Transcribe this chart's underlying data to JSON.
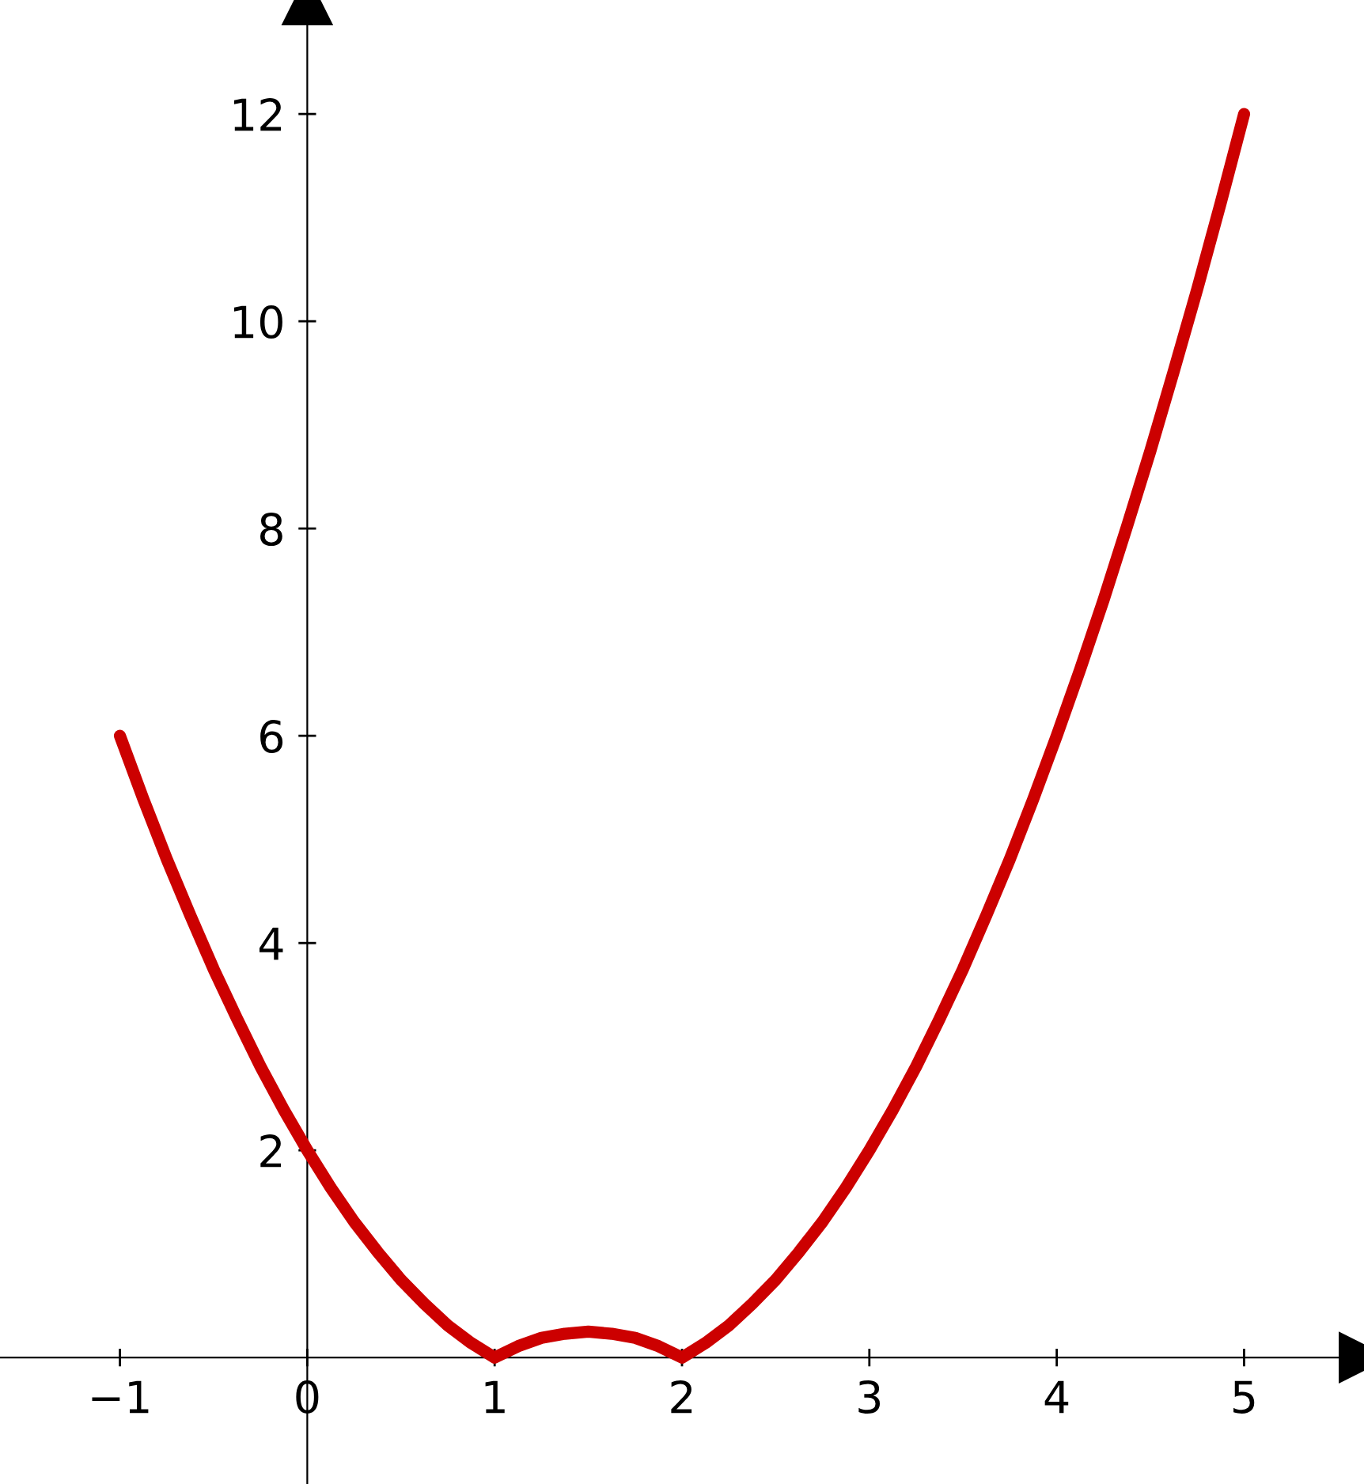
{
  "chart_data": {
    "type": "line",
    "x": [
      -1,
      -0.875,
      -0.75,
      -0.625,
      -0.5,
      -0.375,
      -0.25,
      -0.125,
      0,
      0.125,
      0.25,
      0.375,
      0.5,
      0.625,
      0.75,
      0.875,
      1,
      1.125,
      1.25,
      1.375,
      1.5,
      1.625,
      1.75,
      1.875,
      2,
      2.125,
      2.25,
      2.375,
      2.5,
      2.625,
      2.75,
      2.875,
      3,
      3.125,
      3.25,
      3.375,
      3.5,
      3.625,
      3.75,
      3.875,
      4,
      4.125,
      4.25,
      4.375,
      4.5,
      4.625,
      4.75,
      4.875,
      5
    ],
    "series": [
      {
        "color": "#cc0000",
        "values": [
          6,
          5.39,
          4.81,
          4.27,
          3.75,
          3.27,
          2.81,
          2.39,
          2,
          1.64,
          1.31,
          1.02,
          0.75,
          0.52,
          0.31,
          0.14,
          0,
          0.11,
          0.19,
          0.23,
          0.25,
          0.23,
          0.19,
          0.11,
          0,
          0.14,
          0.31,
          0.52,
          0.75,
          1.02,
          1.31,
          1.64,
          2,
          2.39,
          2.81,
          3.27,
          3.75,
          4.27,
          4.81,
          5.39,
          6,
          6.64,
          7.31,
          8.02,
          8.75,
          9.52,
          10.31,
          11.14,
          12
        ]
      }
    ],
    "xlim": [
      -1.64,
      5.64
    ],
    "ylim": [
      -1.22,
      13.1
    ],
    "xticks": [
      {
        "value": -1,
        "label": "−1"
      },
      0,
      1,
      2,
      3,
      4,
      5
    ],
    "yticks": [
      2,
      4,
      6,
      8,
      10,
      12
    ],
    "grid": false,
    "marker": "none",
    "line_style": "solid"
  }
}
